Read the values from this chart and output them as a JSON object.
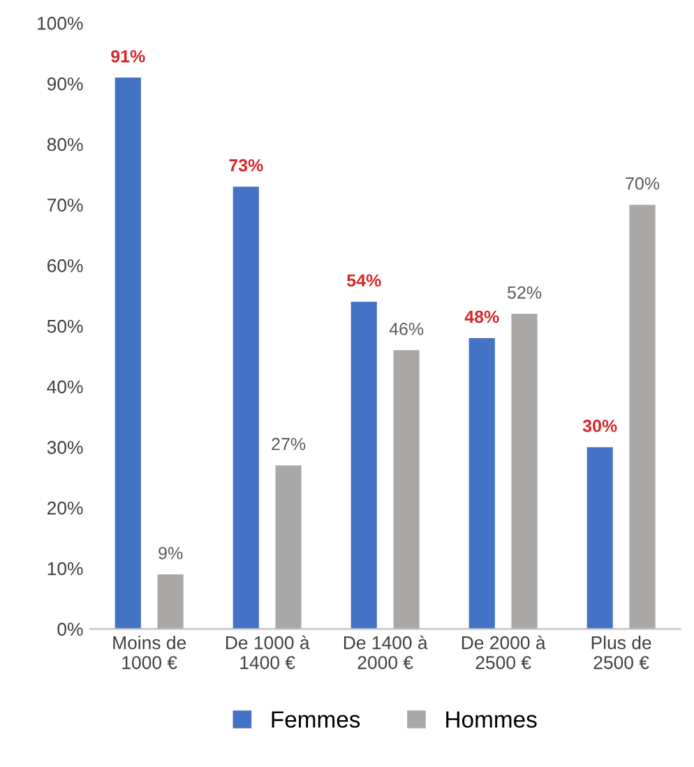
{
  "chart_data": {
    "type": "bar",
    "categories": [
      "Moins de\n1000 €",
      "De 1000 à\n1400 €",
      "De 1400 à\n2000 €",
      "De 2000 à\n2500 €",
      "Plus de\n2500 €"
    ],
    "series": [
      {
        "name": "Femmes",
        "color": "#4472c4",
        "values": [
          91,
          73,
          54,
          48,
          30
        ],
        "value_labels": [
          "91%",
          "73%",
          "54%",
          "48%",
          "30%"
        ]
      },
      {
        "name": "Hommes",
        "color": "#aaa7a7",
        "values": [
          9,
          27,
          46,
          52,
          70
        ],
        "value_labels": [
          "9%",
          "27%",
          "46%",
          "52%",
          "70%"
        ]
      }
    ],
    "ylim": [
      0,
      100
    ],
    "yticks": [
      {
        "value": 0,
        "label": "0%"
      },
      {
        "value": 10,
        "label": "10%"
      },
      {
        "value": 20,
        "label": "20%"
      },
      {
        "value": 30,
        "label": "30%"
      },
      {
        "value": 40,
        "label": "40%"
      },
      {
        "value": 50,
        "label": "50%"
      },
      {
        "value": 60,
        "label": "60%"
      },
      {
        "value": 70,
        "label": "70%"
      },
      {
        "value": 80,
        "label": "80%"
      },
      {
        "value": 90,
        "label": "90%"
      },
      {
        "value": 100,
        "label": "100%"
      }
    ],
    "grid": false,
    "legend": "bottom"
  }
}
